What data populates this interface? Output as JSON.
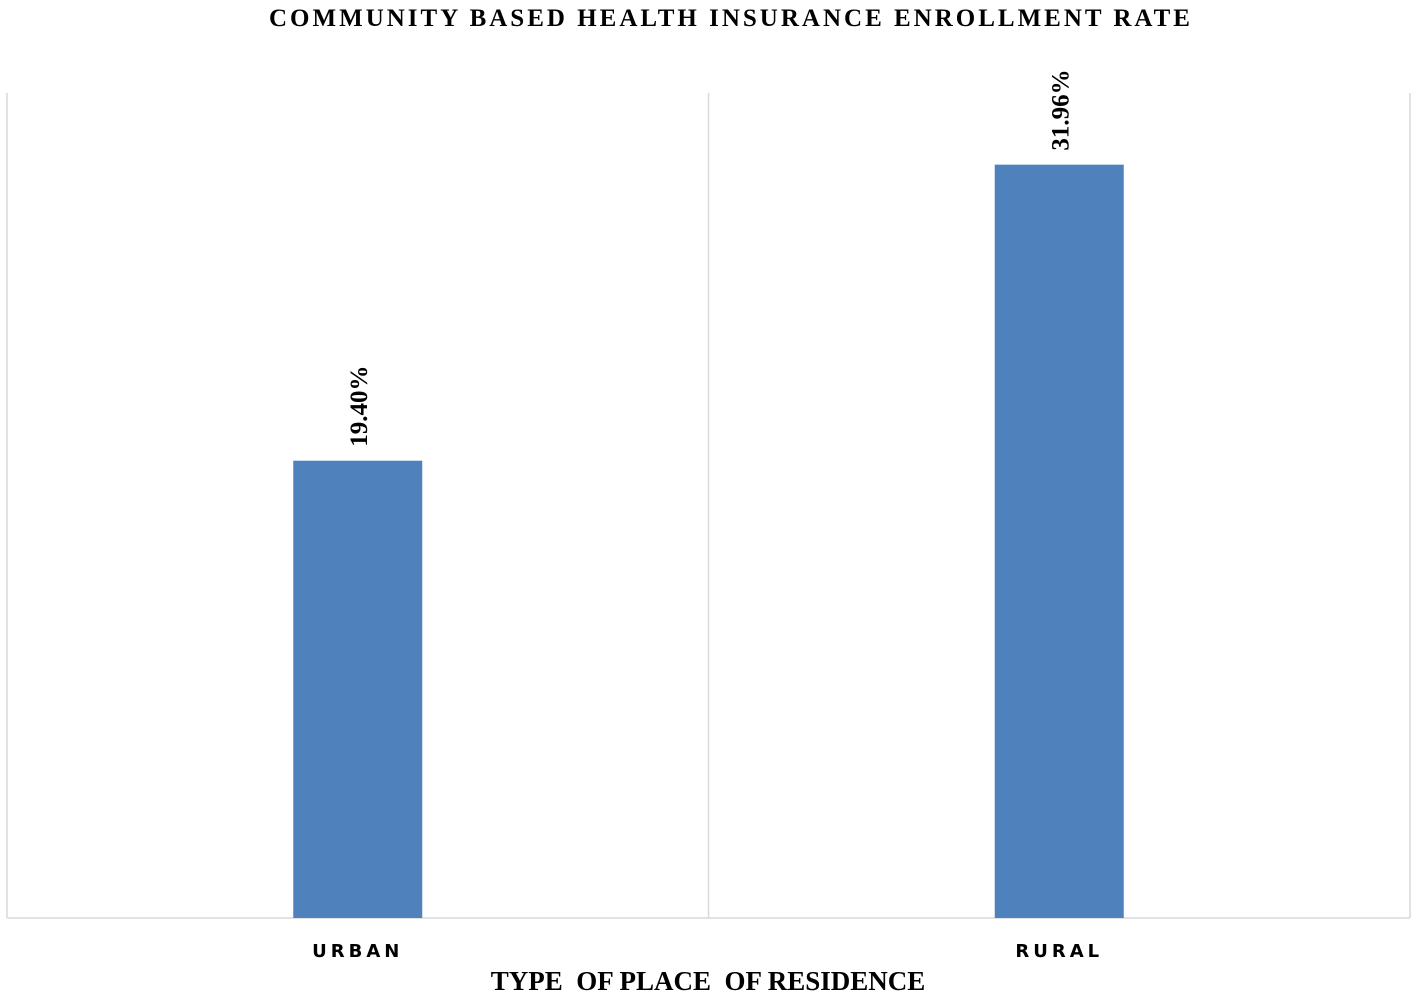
{
  "chart_data": {
    "type": "bar",
    "title": "COMMUNITY BASED HEALTH INSURANCE ENROLLMENT RATE",
    "xlabel": "TYPE  OF PLACE  OF RESIDENCE",
    "ylabel": "",
    "categories": [
      "URBAN",
      "RURAL"
    ],
    "values": [
      19.4,
      31.96
    ],
    "data_labels": [
      "19.40%",
      "31.96%"
    ],
    "ylim": [
      0,
      35
    ],
    "grid": false,
    "legend": "none",
    "colors": {
      "bar": "#4f81bd",
      "axis": "#d9d9d9"
    }
  }
}
